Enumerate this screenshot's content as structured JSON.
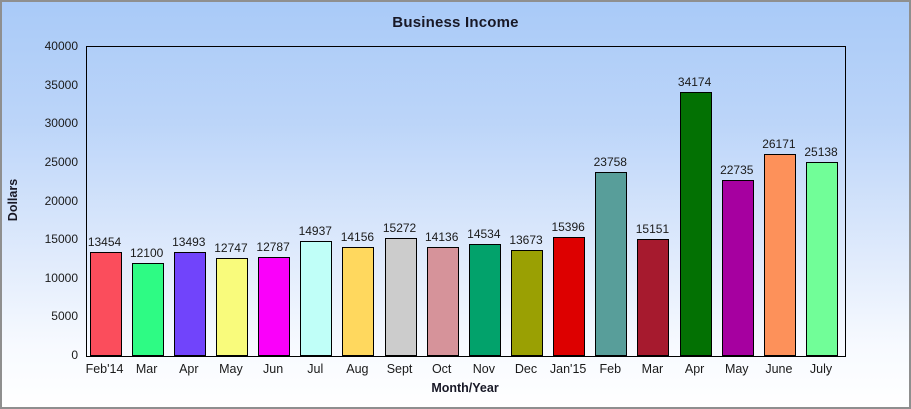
{
  "window": {
    "border_color": "#8f8f8f",
    "background_top_color": "#a9caf8",
    "background_bottom_color": "#ffffff"
  },
  "chart_data": {
    "type": "bar",
    "title": "Business Income",
    "xlabel": "Month/Year",
    "ylabel": "Dollars",
    "ylim": [
      0,
      40000
    ],
    "y_ticks": [
      0,
      5000,
      10000,
      15000,
      20000,
      25000,
      30000,
      35000,
      40000
    ],
    "grid": false,
    "legend_position": "none",
    "bar_value_labels_visible": true,
    "bar_border_color": "#000000",
    "categories": [
      "Feb'14",
      "Mar",
      "Apr",
      "May",
      "Jun",
      "Jul",
      "Aug",
      "Sept",
      "Oct",
      "Nov",
      "Dec",
      "Jan'15",
      "Feb",
      "Mar",
      "Apr",
      "May",
      "June",
      "July"
    ],
    "values": [
      13454,
      12100,
      13493,
      12747,
      12787,
      14937,
      14156,
      15272,
      14136,
      14534,
      13673,
      15396,
      23758,
      15151,
      34174,
      22735,
      26171,
      25138
    ],
    "bar_colors": [
      "#FB4D5C",
      "#2EFB84",
      "#7144FB",
      "#F9FB7C",
      "#FA00FA",
      "#C0FFF8",
      "#FFD85E",
      "#CCCCCC",
      "#D6939A",
      "#02A26B",
      "#9AA003",
      "#DD0000",
      "#589E9A",
      "#A61A2E",
      "#037103",
      "#A600A0",
      "#FD915A",
      "#71FE98"
    ]
  }
}
